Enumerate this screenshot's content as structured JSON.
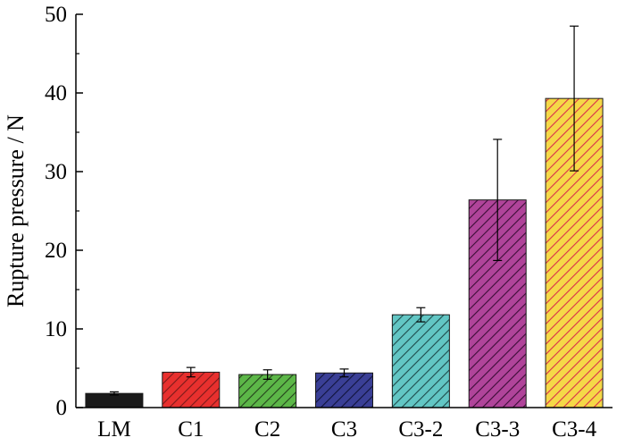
{
  "chart_data": {
    "type": "bar",
    "title": "",
    "xlabel": "",
    "ylabel": "Rupture pressure / N",
    "ylim": [
      0,
      50
    ],
    "yticks": [
      0,
      10,
      20,
      30,
      40,
      50
    ],
    "categories": [
      "LM",
      "C1",
      "C2",
      "C3",
      "C3-2",
      "C3-3",
      "C3-4"
    ],
    "values": [
      1.8,
      4.5,
      4.2,
      4.4,
      11.8,
      26.4,
      39.3
    ],
    "errors": [
      0.2,
      0.6,
      0.6,
      0.5,
      0.9,
      7.7,
      9.2
    ],
    "colors": [
      "#1a1a1a",
      "#e8302e",
      "#5cb748",
      "#3a3f96",
      "#62c6c4",
      "#b0449a",
      "#f5d848"
    ],
    "hatch_colors": [
      "#1a1a1a",
      "#7a1a1a",
      "#24401c",
      "#10133a",
      "#1d4a4a",
      "#3c0d37",
      "#d9304a"
    ],
    "grid": false,
    "legend": "none"
  }
}
